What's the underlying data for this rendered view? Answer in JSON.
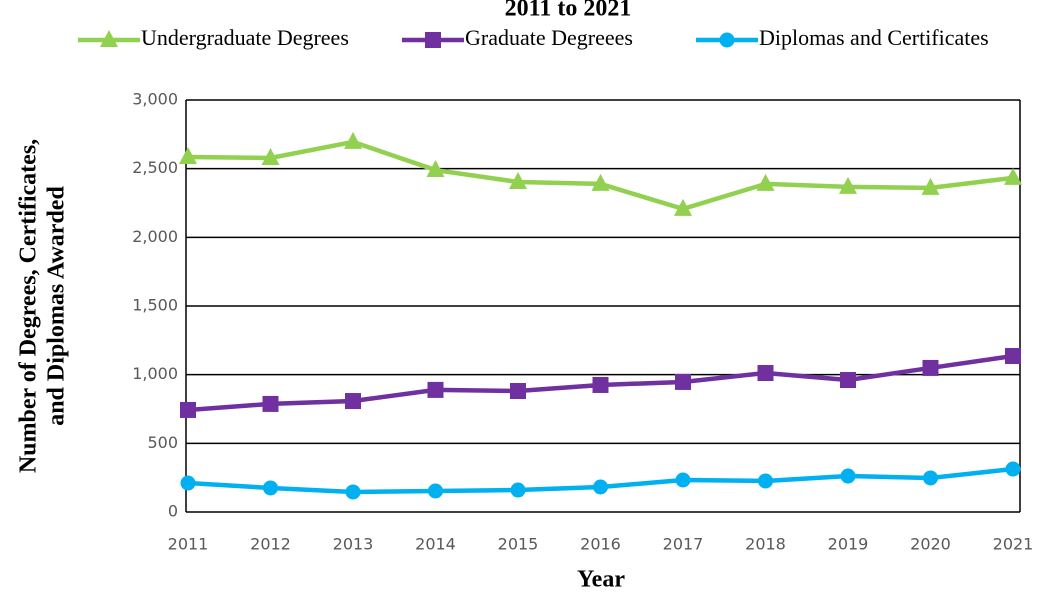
{
  "chart_data": {
    "type": "line",
    "title": "2011 to 2021",
    "x_label": "Year",
    "y_label_lines": [
      "Number of Degrees, Certificates,",
      "and Diplomas Awarded"
    ],
    "categories": [
      "2011",
      "2012",
      "2013",
      "2014",
      "2015",
      "2016",
      "2017",
      "2018",
      "2019",
      "2020",
      "2021"
    ],
    "series": [
      {
        "name": "Undergraduate Degrees",
        "color": "#92d050",
        "marker": "triangle",
        "values": [
          2585,
          2578,
          2695,
          2490,
          2403,
          2389,
          2207,
          2389,
          2367,
          2360,
          2433
        ]
      },
      {
        "name": "Graduate Degreees",
        "color": "#7030a0",
        "marker": "square",
        "values": [
          743,
          787,
          808,
          889,
          881,
          925,
          947,
          1012,
          961,
          1049,
          1136
        ]
      },
      {
        "name": "Diplomas and Certificates",
        "color": "#00b0f0",
        "marker": "circle",
        "values": [
          211,
          175,
          146,
          153,
          160,
          182,
          233,
          226,
          262,
          248,
          313
        ]
      }
    ],
    "ylim": [
      0,
      3000
    ],
    "yticks": [
      0,
      500,
      {
        "value": 1000,
        "label": "1,000"
      },
      {
        "value": 1500,
        "label": "1,500"
      },
      {
        "value": 2000,
        "label": "2,000"
      },
      {
        "value": 2500,
        "label": "2,500"
      },
      {
        "value": 3000,
        "label": "3,000"
      }
    ],
    "grid": true,
    "legend": "top"
  }
}
